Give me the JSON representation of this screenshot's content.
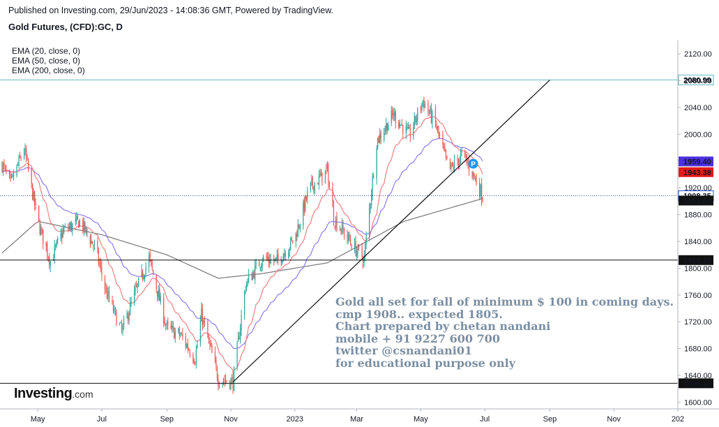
{
  "header": {
    "published": "Published on Investing.com, 29/Jun/2023 - 14:08:36 GMT, Powered by TradingView.",
    "symbol": "Gold Futures, (CFD):GC, D"
  },
  "indicators": [
    "EMA (20, close, 0)",
    "EMA (50, close, 0)",
    "EMA (200, close, 0)"
  ],
  "annotation": [
    "Gold all set for fall of minimum $ 100 in coming days.",
    "cmp 1908..  expected 1805.",
    "Chart prepared by chetan nandani",
    "mobile + 91 9227 600 700",
    "twitter  @csnandani01",
    "for educational purpose only"
  ],
  "logo": {
    "brand": "Investing",
    "suffix": ".com"
  },
  "colors": {
    "bull": "#26a69a",
    "bear": "#ef5350",
    "ema20": "#f08080",
    "ema50": "#8a7cf0",
    "ema200": "#777777",
    "hline_top": "#5fb8c0",
    "price_badge": "#1f4fd6",
    "red_badge": "#e51a1a",
    "violet_badge": "#4b2fe0",
    "pivot_marker": "#2196f3"
  },
  "chart_data": {
    "type": "candlestick",
    "y_ticks": [
      2120,
      2080,
      2040,
      2000,
      1960,
      1920,
      1880,
      1840,
      1800,
      1760,
      1720,
      1680,
      1640,
      1600
    ],
    "y_tick_labels": [
      "2120.00",
      "2080.00",
      "2040.00",
      "2000.00",
      "1960.00",
      "1920.00",
      "1880.00",
      "1840.00",
      "1800.00",
      "1760.00",
      "1720.00",
      "1680.00",
      "1640.00",
      "1600.00"
    ],
    "ylim": [
      1590,
      2140
    ],
    "x_labels": [
      "May",
      "Jul",
      "Sep",
      "Nov",
      "2023",
      "Mar",
      "May",
      "Jul",
      "Sep",
      "Nov",
      "202"
    ],
    "x_start": "2022-03-26",
    "x_end": "2024-01-01",
    "x_label_dates": [
      "2022-05-01",
      "2022-07-01",
      "2022-09-01",
      "2022-11-01",
      "2023-01-01",
      "2023-03-01",
      "2023-05-01",
      "2023-07-01",
      "2023-09-01",
      "2023-11-01",
      "2024-01-01"
    ],
    "horizontal_lines": [
      {
        "value": 2080.99,
        "label": "2080.99",
        "style": "solid-cyan"
      },
      {
        "value": 1812.1,
        "label": "1812.10",
        "style": "solid-black"
      },
      {
        "value": 1628.17,
        "label": "1628.17",
        "style": "solid-black"
      },
      {
        "value": 1908.35,
        "label": "1908.35",
        "style": "dotted"
      }
    ],
    "badges": [
      {
        "value": 1959.4,
        "label": "1959.40",
        "kind": "violet"
      },
      {
        "value": 1943.38,
        "label": "1943.38",
        "kind": "red"
      },
      {
        "value": 1908.35,
        "label": "1908.35",
        "kind": "price"
      },
      {
        "value": 1901.04,
        "label": "1901.04",
        "kind": "dark"
      }
    ],
    "trendline": {
      "from": [
        "2022-11-03",
        1630
      ],
      "to": [
        "2023-09-01",
        2081
      ]
    },
    "pivot_marker": {
      "date": "2023-06-20",
      "value": 1956,
      "label": "P"
    },
    "price_keypoints": [
      [
        "2022-03-28",
        1955
      ],
      [
        "2022-04-05",
        1925
      ],
      [
        "2022-04-18",
        1978
      ],
      [
        "2022-05-01",
        1870
      ],
      [
        "2022-05-13",
        1810
      ],
      [
        "2022-05-25",
        1855
      ],
      [
        "2022-06-10",
        1870
      ],
      [
        "2022-06-25",
        1830
      ],
      [
        "2022-07-05",
        1765
      ],
      [
        "2022-07-20",
        1705
      ],
      [
        "2022-08-01",
        1760
      ],
      [
        "2022-08-15",
        1815
      ],
      [
        "2022-09-01",
        1710
      ],
      [
        "2022-09-14",
        1700
      ],
      [
        "2022-09-28",
        1665
      ],
      [
        "2022-10-04",
        1730
      ],
      [
        "2022-10-20",
        1635
      ],
      [
        "2022-11-03",
        1630
      ],
      [
        "2022-11-15",
        1775
      ],
      [
        "2022-12-01",
        1815
      ],
      [
        "2022-12-15",
        1810
      ],
      [
        "2023-01-01",
        1845
      ],
      [
        "2023-01-15",
        1920
      ],
      [
        "2023-02-01",
        1945
      ],
      [
        "2023-02-07",
        1875
      ],
      [
        "2023-02-28",
        1828
      ],
      [
        "2023-03-08",
        1815
      ],
      [
        "2023-03-20",
        1990
      ],
      [
        "2023-04-05",
        2030
      ],
      [
        "2023-04-20",
        1998
      ],
      [
        "2023-05-03",
        2050
      ],
      [
        "2023-05-15",
        2015
      ],
      [
        "2023-05-28",
        1945
      ],
      [
        "2023-06-10",
        1970
      ],
      [
        "2023-06-20",
        1940
      ],
      [
        "2023-06-29",
        1908
      ]
    ],
    "ema200_keypoints": [
      [
        "2022-03-26",
        1820
      ],
      [
        "2022-05-01",
        1870
      ],
      [
        "2022-07-01",
        1850
      ],
      [
        "2022-09-01",
        1820
      ],
      [
        "2022-10-20",
        1785
      ],
      [
        "2022-12-01",
        1792
      ],
      [
        "2023-02-01",
        1808
      ],
      [
        "2023-04-15",
        1870
      ],
      [
        "2023-06-29",
        1904
      ]
    ]
  }
}
